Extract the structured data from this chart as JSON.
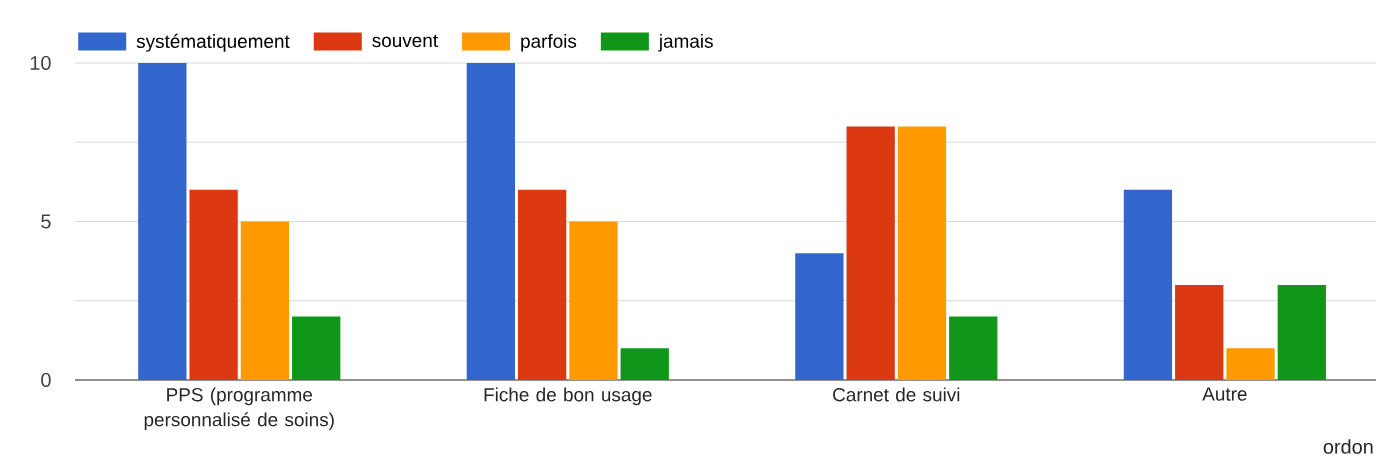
{
  "chart_data": {
    "type": "bar",
    "categories": [
      "PPS (programme personnalisé de soins)",
      "Fiche de bon usage",
      "Carnet de suivi",
      "Autre"
    ],
    "series": [
      {
        "name": "systématiquement",
        "color": "#3366cc",
        "values": [
          10,
          10,
          4,
          6
        ]
      },
      {
        "name": "souvent",
        "color": "#dc3912",
        "values": [
          6,
          6,
          8,
          3
        ]
      },
      {
        "name": "parfois",
        "color": "#ff9900",
        "values": [
          5,
          5,
          8,
          1
        ]
      },
      {
        "name": "jamais",
        "color": "#109618",
        "values": [
          2,
          1,
          2,
          3
        ]
      }
    ],
    "ylim": [
      0,
      10
    ],
    "yticks": [
      0,
      {
        "value": 2.5,
        "label": null
      },
      5,
      {
        "value": 7.5,
        "label": null
      },
      10
    ],
    "grid": "y",
    "legend": "top left",
    "annotations": [
      "ordon"
    ]
  }
}
